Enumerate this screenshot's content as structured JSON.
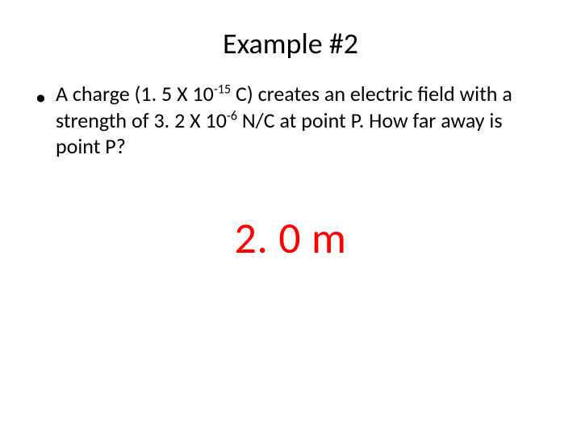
{
  "title": "Example #2",
  "bullet": {
    "marker": "•",
    "pre1": "A charge (1. 5 X 10",
    "sup1": "-15",
    "mid1": " C) creates  an electric field with a strength of 3. 2 X 10",
    "sup2": "-6",
    "post1": "  N/C at point P.  How far away is point P?"
  },
  "answer": "2. 0 m",
  "colors": {
    "text": "#000000",
    "answer": "#ff0000",
    "background": "#ffffff"
  },
  "typography": {
    "title_fontsize": 36,
    "body_fontsize": 26,
    "answer_fontsize": 54
  }
}
